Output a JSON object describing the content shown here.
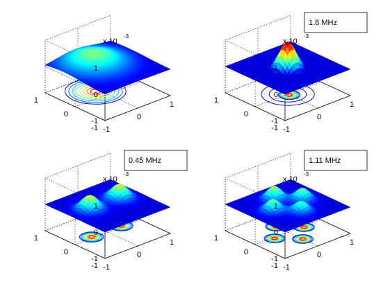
{
  "chart_data": [
    {
      "type": "surface",
      "mode": "single",
      "scale_label": "x 10",
      "scale_exponent": "-3",
      "z_ticks": [
        "1",
        "0",
        "-1"
      ],
      "y_ticks": [
        "1",
        "0",
        "-1"
      ],
      "x_ticks": [
        "-1",
        "0",
        "1"
      ],
      "legend": "",
      "peaks": [
        {
          "x": -0.1,
          "y": 0.35,
          "height": 0.45,
          "width": 0.55
        }
      ]
    },
    {
      "type": "surface",
      "mode": "ring",
      "scale_label": "x 10",
      "scale_exponent": "-3",
      "z_ticks": [
        "1",
        "0",
        "-1"
      ],
      "y_ticks": [
        "1",
        "0",
        "-1"
      ],
      "x_ticks": [
        "-1",
        "0",
        "1"
      ],
      "legend": "1.6  MHz",
      "peaks": [
        {
          "x": 0.0,
          "y": 0.0,
          "height": 1.0,
          "width": 0.18
        }
      ]
    },
    {
      "type": "surface",
      "mode": "double",
      "scale_label": "x 10",
      "scale_exponent": "-3",
      "z_ticks": [
        "1",
        "0",
        "-1"
      ],
      "y_ticks": [
        "1",
        "0",
        "-1"
      ],
      "x_ticks": [
        "-1",
        "0",
        "1"
      ],
      "legend": "0.45  MHz",
      "peaks": [
        {
          "x": -0.45,
          "y": 0.1,
          "height": 0.55,
          "width": 0.2
        },
        {
          "x": 0.45,
          "y": 0.1,
          "height": 0.55,
          "width": 0.2
        }
      ]
    },
    {
      "type": "surface",
      "mode": "quad",
      "scale_label": "x 10",
      "scale_exponent": "-3",
      "z_ticks": [
        "1",
        "0",
        "-1"
      ],
      "y_ticks": [
        "1",
        "0",
        "-1"
      ],
      "x_ticks": [
        "-1",
        "0",
        "1"
      ],
      "legend": "1.11  MHz",
      "peaks": [
        {
          "x": 0.0,
          "y": 0.45,
          "height": 0.5,
          "width": 0.17
        },
        {
          "x": -0.45,
          "y": 0.0,
          "height": 0.45,
          "width": 0.17
        },
        {
          "x": 0.45,
          "y": 0.0,
          "height": 0.45,
          "width": 0.17
        },
        {
          "x": 0.0,
          "y": -0.45,
          "height": 0.4,
          "width": 0.17
        }
      ]
    }
  ]
}
